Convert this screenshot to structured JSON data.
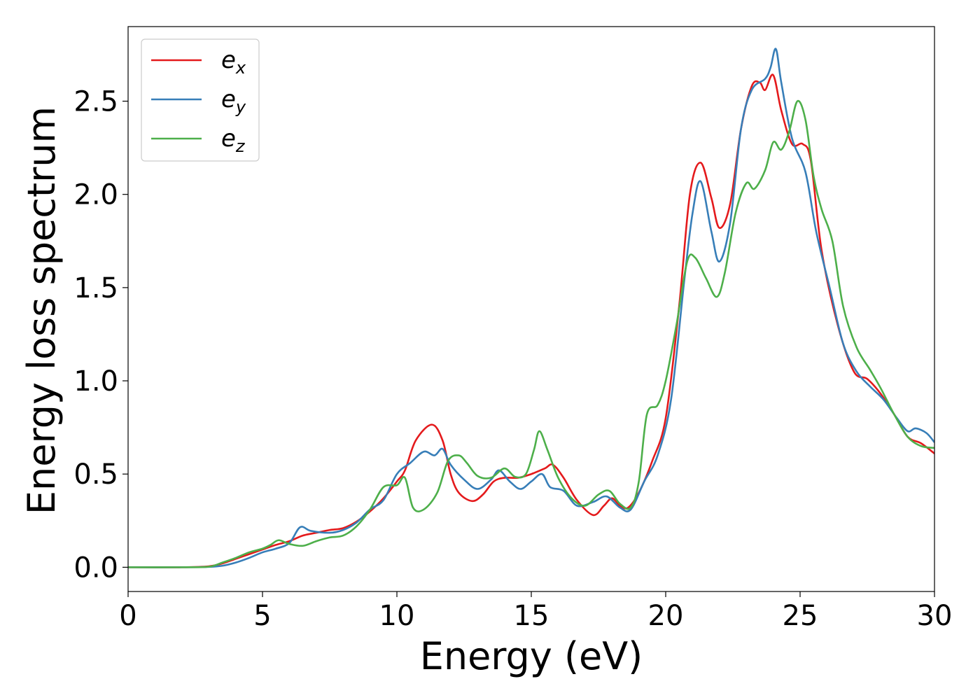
{
  "chart_data": {
    "type": "line",
    "title": "",
    "xlabel": "Energy (eV)",
    "ylabel": "Energy loss spectrum",
    "xlim": [
      0,
      30
    ],
    "ylim": [
      -0.13,
      2.9
    ],
    "xticks": [
      "0",
      "5",
      "10",
      "15",
      "20",
      "25",
      "30"
    ],
    "yticks": [
      "0.0",
      "0.5",
      "1.0",
      "1.5",
      "2.0",
      "2.5"
    ],
    "grid": false,
    "legend_placement": "top-left",
    "series": [
      {
        "name": "e",
        "sub": "x",
        "color": "#e41a1c",
        "points": [
          [
            0,
            0
          ],
          [
            2,
            0
          ],
          [
            3,
            0.005
          ],
          [
            3.5,
            0.02
          ],
          [
            4,
            0.045
          ],
          [
            4.5,
            0.07
          ],
          [
            5,
            0.095
          ],
          [
            5.5,
            0.12
          ],
          [
            6,
            0.14
          ],
          [
            6.5,
            0.17
          ],
          [
            7,
            0.185
          ],
          [
            7.5,
            0.2
          ],
          [
            8,
            0.21
          ],
          [
            8.5,
            0.245
          ],
          [
            9,
            0.3
          ],
          [
            9.5,
            0.37
          ],
          [
            10,
            0.46
          ],
          [
            10.3,
            0.52
          ],
          [
            10.7,
            0.68
          ],
          [
            11.3,
            0.765
          ],
          [
            11.7,
            0.68
          ],
          [
            12,
            0.5
          ],
          [
            12.3,
            0.4
          ],
          [
            12.8,
            0.355
          ],
          [
            13.2,
            0.39
          ],
          [
            13.6,
            0.46
          ],
          [
            14,
            0.48
          ],
          [
            14.5,
            0.48
          ],
          [
            15,
            0.5
          ],
          [
            15.5,
            0.53
          ],
          [
            15.8,
            0.55
          ],
          [
            16.2,
            0.48
          ],
          [
            16.7,
            0.36
          ],
          [
            17.3,
            0.28
          ],
          [
            17.7,
            0.33
          ],
          [
            18,
            0.37
          ],
          [
            18.3,
            0.33
          ],
          [
            18.6,
            0.32
          ],
          [
            19,
            0.4
          ],
          [
            19.5,
            0.57
          ],
          [
            20,
            0.8
          ],
          [
            20.5,
            1.4
          ],
          [
            20.9,
            2.0
          ],
          [
            21.3,
            2.17
          ],
          [
            21.7,
            1.98
          ],
          [
            22,
            1.82
          ],
          [
            22.4,
            1.95
          ],
          [
            22.8,
            2.35
          ],
          [
            23.2,
            2.58
          ],
          [
            23.5,
            2.6
          ],
          [
            23.7,
            2.56
          ],
          [
            24,
            2.64
          ],
          [
            24.3,
            2.45
          ],
          [
            24.7,
            2.27
          ],
          [
            25.1,
            2.27
          ],
          [
            25.4,
            2.18
          ],
          [
            25.8,
            1.7
          ],
          [
            26.4,
            1.3
          ],
          [
            27,
            1.05
          ],
          [
            27.5,
            1.01
          ],
          [
            28,
            0.93
          ],
          [
            28.5,
            0.82
          ],
          [
            29,
            0.7
          ],
          [
            29.5,
            0.665
          ],
          [
            30,
            0.61
          ]
        ]
      },
      {
        "name": "e",
        "sub": "y",
        "color": "#377eb8",
        "points": [
          [
            0,
            0
          ],
          [
            2,
            0
          ],
          [
            3,
            0.002
          ],
          [
            3.5,
            0.008
          ],
          [
            4,
            0.025
          ],
          [
            4.5,
            0.05
          ],
          [
            5,
            0.08
          ],
          [
            5.5,
            0.1
          ],
          [
            6,
            0.13
          ],
          [
            6.4,
            0.215
          ],
          [
            6.8,
            0.195
          ],
          [
            7.5,
            0.185
          ],
          [
            8,
            0.2
          ],
          [
            8.5,
            0.24
          ],
          [
            9,
            0.31
          ],
          [
            9.5,
            0.36
          ],
          [
            10,
            0.5
          ],
          [
            10.5,
            0.56
          ],
          [
            11,
            0.62
          ],
          [
            11.4,
            0.6
          ],
          [
            11.7,
            0.635
          ],
          [
            12,
            0.55
          ],
          [
            12.5,
            0.47
          ],
          [
            13,
            0.42
          ],
          [
            13.5,
            0.47
          ],
          [
            13.8,
            0.52
          ],
          [
            14.2,
            0.46
          ],
          [
            14.6,
            0.42
          ],
          [
            15,
            0.46
          ],
          [
            15.4,
            0.5
          ],
          [
            15.7,
            0.43
          ],
          [
            16.2,
            0.41
          ],
          [
            16.7,
            0.33
          ],
          [
            17.3,
            0.35
          ],
          [
            17.8,
            0.38
          ],
          [
            18.3,
            0.32
          ],
          [
            18.7,
            0.31
          ],
          [
            19.2,
            0.46
          ],
          [
            19.7,
            0.6
          ],
          [
            20.2,
            0.9
          ],
          [
            20.7,
            1.55
          ],
          [
            21,
            1.9
          ],
          [
            21.3,
            2.07
          ],
          [
            21.7,
            1.8
          ],
          [
            22,
            1.64
          ],
          [
            22.4,
            1.85
          ],
          [
            22.8,
            2.35
          ],
          [
            23.2,
            2.56
          ],
          [
            23.7,
            2.62
          ],
          [
            23.9,
            2.68
          ],
          [
            24.1,
            2.78
          ],
          [
            24.3,
            2.6
          ],
          [
            24.7,
            2.3
          ],
          [
            25.2,
            2.12
          ],
          [
            25.6,
            1.8
          ],
          [
            26.1,
            1.5
          ],
          [
            26.6,
            1.2
          ],
          [
            27.1,
            1.05
          ],
          [
            27.6,
            0.97
          ],
          [
            28.1,
            0.9
          ],
          [
            28.6,
            0.8
          ],
          [
            29,
            0.73
          ],
          [
            29.3,
            0.745
          ],
          [
            29.7,
            0.72
          ],
          [
            30,
            0.67
          ]
        ]
      },
      {
        "name": "e",
        "sub": "z",
        "color": "#4daf4a",
        "points": [
          [
            0,
            0
          ],
          [
            2,
            0
          ],
          [
            3,
            0.003
          ],
          [
            3.5,
            0.025
          ],
          [
            4,
            0.05
          ],
          [
            4.5,
            0.08
          ],
          [
            5,
            0.1
          ],
          [
            5.3,
            0.12
          ],
          [
            5.6,
            0.145
          ],
          [
            6,
            0.125
          ],
          [
            6.5,
            0.115
          ],
          [
            7,
            0.14
          ],
          [
            7.5,
            0.16
          ],
          [
            8,
            0.17
          ],
          [
            8.5,
            0.22
          ],
          [
            9,
            0.31
          ],
          [
            9.5,
            0.43
          ],
          [
            10,
            0.44
          ],
          [
            10.3,
            0.48
          ],
          [
            10.6,
            0.32
          ],
          [
            11,
            0.31
          ],
          [
            11.5,
            0.4
          ],
          [
            11.9,
            0.57
          ],
          [
            12.3,
            0.6
          ],
          [
            12.6,
            0.56
          ],
          [
            13,
            0.49
          ],
          [
            13.5,
            0.48
          ],
          [
            14,
            0.53
          ],
          [
            14.4,
            0.485
          ],
          [
            14.8,
            0.5
          ],
          [
            15.1,
            0.63
          ],
          [
            15.3,
            0.73
          ],
          [
            15.6,
            0.63
          ],
          [
            16,
            0.48
          ],
          [
            16.5,
            0.37
          ],
          [
            17,
            0.33
          ],
          [
            17.5,
            0.39
          ],
          [
            17.9,
            0.41
          ],
          [
            18.3,
            0.34
          ],
          [
            18.7,
            0.32
          ],
          [
            19,
            0.46
          ],
          [
            19.3,
            0.82
          ],
          [
            19.7,
            0.87
          ],
          [
            20,
            1.0
          ],
          [
            20.4,
            1.3
          ],
          [
            20.8,
            1.64
          ],
          [
            21.1,
            1.66
          ],
          [
            21.5,
            1.55
          ],
          [
            21.9,
            1.45
          ],
          [
            22.2,
            1.58
          ],
          [
            22.6,
            1.9
          ],
          [
            23,
            2.06
          ],
          [
            23.3,
            2.03
          ],
          [
            23.7,
            2.13
          ],
          [
            24,
            2.28
          ],
          [
            24.3,
            2.24
          ],
          [
            24.6,
            2.34
          ],
          [
            24.9,
            2.5
          ],
          [
            25.2,
            2.4
          ],
          [
            25.5,
            2.1
          ],
          [
            25.8,
            1.92
          ],
          [
            26.2,
            1.75
          ],
          [
            26.6,
            1.4
          ],
          [
            27.1,
            1.18
          ],
          [
            27.6,
            1.06
          ],
          [
            28,
            0.96
          ],
          [
            28.5,
            0.82
          ],
          [
            29,
            0.7
          ],
          [
            29.5,
            0.65
          ],
          [
            30,
            0.64
          ]
        ]
      }
    ]
  }
}
